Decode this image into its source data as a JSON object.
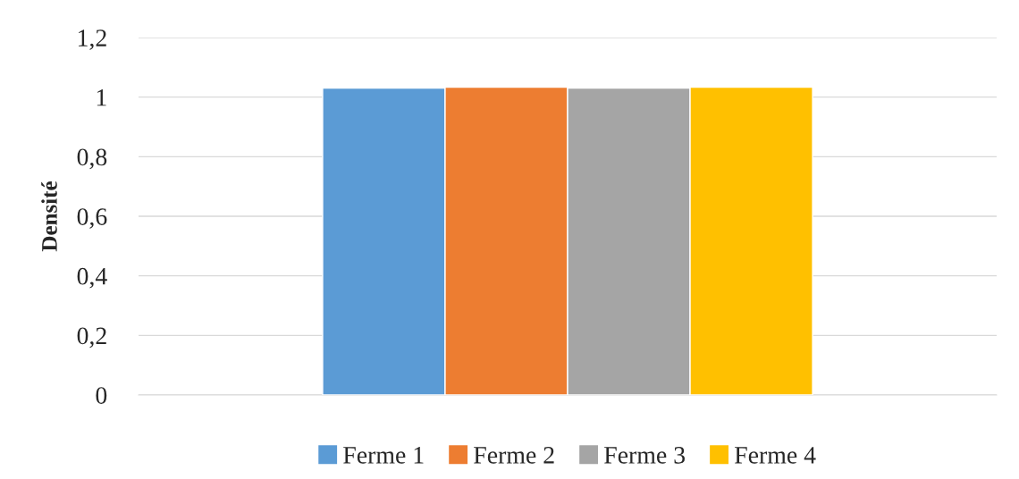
{
  "chart_data": {
    "type": "bar",
    "ylabel": "Densité",
    "categories": [
      null
    ],
    "series": [
      {
        "name": "Ferme 1",
        "color": "#5b9bd5",
        "values": [
          1.03
        ]
      },
      {
        "name": "Ferme 2",
        "color": "#ed7d31",
        "values": [
          1.033
        ]
      },
      {
        "name": "Ferme 3",
        "color": "#a5a5a5",
        "values": [
          1.03
        ]
      },
      {
        "name": "Ferme 4",
        "color": "#ffc000",
        "values": [
          1.033
        ]
      }
    ],
    "ylim": [
      0,
      1.2
    ],
    "yticks": [
      0,
      {
        "value": 0.2,
        "label": "0,2"
      },
      {
        "value": 0.4,
        "label": "0,4"
      },
      {
        "value": 0.6,
        "label": "0,6"
      },
      {
        "value": 0.8,
        "label": "0,8"
      },
      1,
      {
        "value": 1.2,
        "label": "1,2"
      }
    ],
    "grid": "y",
    "legend": "bottom"
  }
}
